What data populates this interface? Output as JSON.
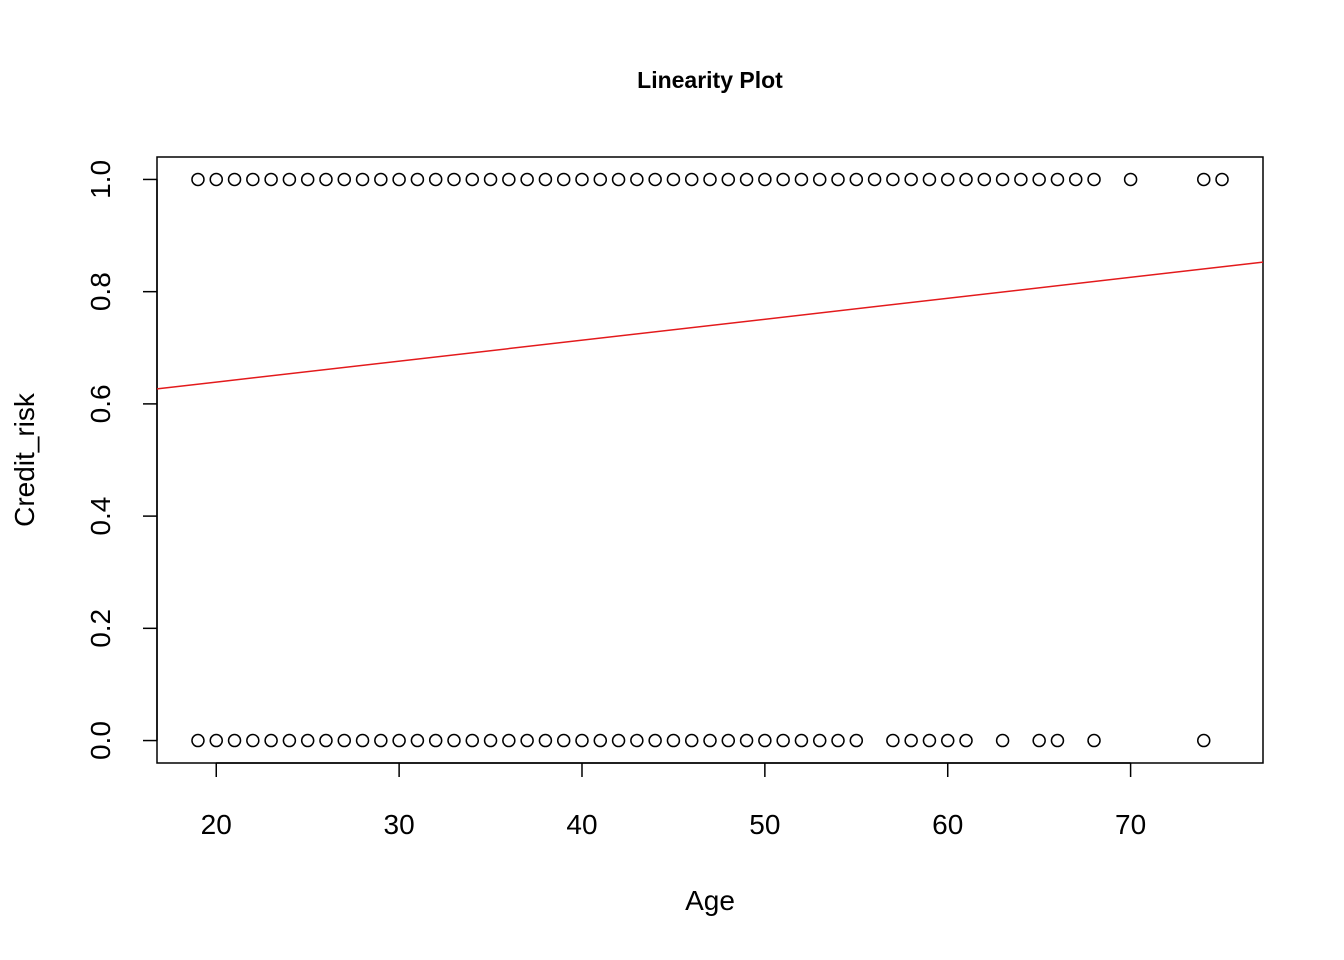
{
  "chart_data": {
    "type": "scatter",
    "title": "Linearity Plot",
    "xlabel": "Age",
    "ylabel": "Credit_risk",
    "xlim": [
      16.76,
      77.24
    ],
    "ylim": [
      -0.04,
      1.04
    ],
    "x_ticks": [
      "20",
      "30",
      "40",
      "50",
      "60",
      "70"
    ],
    "x_tick_values": [
      20,
      30,
      40,
      50,
      60,
      70
    ],
    "y_ticks": [
      "0.0",
      "0.2",
      "0.4",
      "0.6",
      "0.8",
      "1.0"
    ],
    "y_tick_values": [
      0.0,
      0.2,
      0.4,
      0.6,
      0.8,
      1.0
    ],
    "grid": false,
    "legend": "none",
    "series": [
      {
        "x": [
          19,
          20,
          21,
          22,
          23,
          24,
          25,
          26,
          27,
          28,
          29,
          30,
          31,
          32,
          33,
          34,
          35,
          36,
          37,
          38,
          39,
          40,
          41,
          42,
          43,
          44,
          45,
          46,
          47,
          48,
          49,
          50,
          51,
          52,
          53,
          54,
          55,
          56,
          57,
          58,
          59,
          60,
          61,
          62,
          63,
          64,
          65,
          66,
          67,
          68,
          70,
          74,
          75
        ],
        "y": [
          1,
          1,
          1,
          1,
          1,
          1,
          1,
          1,
          1,
          1,
          1,
          1,
          1,
          1,
          1,
          1,
          1,
          1,
          1,
          1,
          1,
          1,
          1,
          1,
          1,
          1,
          1,
          1,
          1,
          1,
          1,
          1,
          1,
          1,
          1,
          1,
          1,
          1,
          1,
          1,
          1,
          1,
          1,
          1,
          1,
          1,
          1,
          1,
          1,
          1,
          1,
          1,
          1
        ]
      },
      {
        "x": [
          19,
          20,
          21,
          22,
          23,
          24,
          25,
          26,
          27,
          28,
          29,
          30,
          31,
          32,
          33,
          34,
          35,
          36,
          37,
          38,
          39,
          40,
          41,
          42,
          43,
          44,
          45,
          46,
          47,
          48,
          49,
          50,
          51,
          52,
          53,
          54,
          55,
          57,
          58,
          59,
          60,
          61,
          63,
          65,
          66,
          68,
          74
        ],
        "y": [
          0,
          0,
          0,
          0,
          0,
          0,
          0,
          0,
          0,
          0,
          0,
          0,
          0,
          0,
          0,
          0,
          0,
          0,
          0,
          0,
          0,
          0,
          0,
          0,
          0,
          0,
          0,
          0,
          0,
          0,
          0,
          0,
          0,
          0,
          0,
          0,
          0,
          0,
          0,
          0,
          0,
          0,
          0,
          0,
          0,
          0,
          0
        ]
      }
    ],
    "fit_line": {
      "intercept": 0.5641,
      "slope": 0.003735,
      "color": "#e31a1c"
    }
  }
}
